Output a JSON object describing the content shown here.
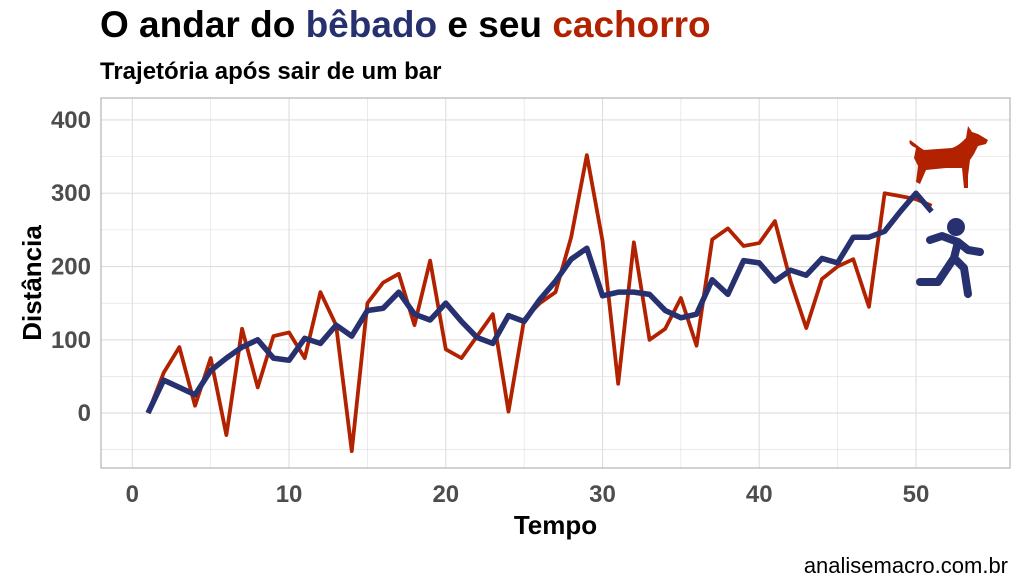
{
  "header": {
    "title_parts": {
      "prefix": "O andar do ",
      "walker_word": "bêbado",
      "middle": " e seu ",
      "dog_word": "cachorro"
    },
    "subtitle": "Trajetória após sair de um bar"
  },
  "caption": "analisemacro.com.br",
  "colors": {
    "drunk": "#283170",
    "dog": "#b22200",
    "axis_text": "#4d4d4d",
    "grid": "#dedede"
  },
  "icons": {
    "dog": "dog-icon",
    "walker": "running-person-icon"
  },
  "chart_data": {
    "type": "line",
    "title": "O andar do bêbado e seu cachorro",
    "subtitle": "Trajetória após sair de um bar",
    "xlabel": "Tempo",
    "ylabel": "Distância",
    "xlim": [
      -2,
      56
    ],
    "ylim": [
      -75,
      430
    ],
    "xticks": [
      0,
      10,
      20,
      30,
      40,
      50
    ],
    "yticks": [
      0,
      100,
      200,
      300,
      400
    ],
    "grid": true,
    "legend": "none",
    "x": [
      1,
      2,
      3,
      4,
      5,
      6,
      7,
      8,
      9,
      10,
      11,
      12,
      13,
      14,
      15,
      16,
      17,
      18,
      19,
      20,
      21,
      22,
      23,
      24,
      25,
      26,
      27,
      28,
      29,
      30,
      31,
      32,
      33,
      34,
      35,
      36,
      37,
      38,
      39,
      40,
      41,
      42,
      43,
      44,
      45,
      46,
      47,
      48,
      49,
      50,
      51
    ],
    "series": [
      {
        "name": "cachorro",
        "color": "#b22200",
        "values": [
          0,
          55,
          90,
          10,
          75,
          -30,
          115,
          35,
          105,
          110,
          75,
          165,
          120,
          -52,
          150,
          178,
          190,
          120,
          208,
          87,
          75,
          105,
          135,
          2,
          128,
          150,
          165,
          240,
          352,
          235,
          40,
          233,
          100,
          115,
          157,
          92,
          237,
          252,
          228,
          232,
          262,
          180,
          116,
          183,
          200,
          210,
          145,
          300,
          296,
          292,
          283
        ]
      },
      {
        "name": "bêbado",
        "color": "#283170",
        "values": [
          0,
          45,
          35,
          25,
          58,
          75,
          90,
          100,
          75,
          72,
          102,
          95,
          120,
          105,
          140,
          143,
          165,
          135,
          127,
          150,
          125,
          103,
          95,
          133,
          125,
          155,
          180,
          210,
          225,
          160,
          165,
          165,
          162,
          140,
          130,
          135,
          182,
          162,
          208,
          205,
          180,
          195,
          188,
          211,
          205,
          240,
          240,
          248,
          275,
          300,
          275
        ]
      }
    ]
  }
}
